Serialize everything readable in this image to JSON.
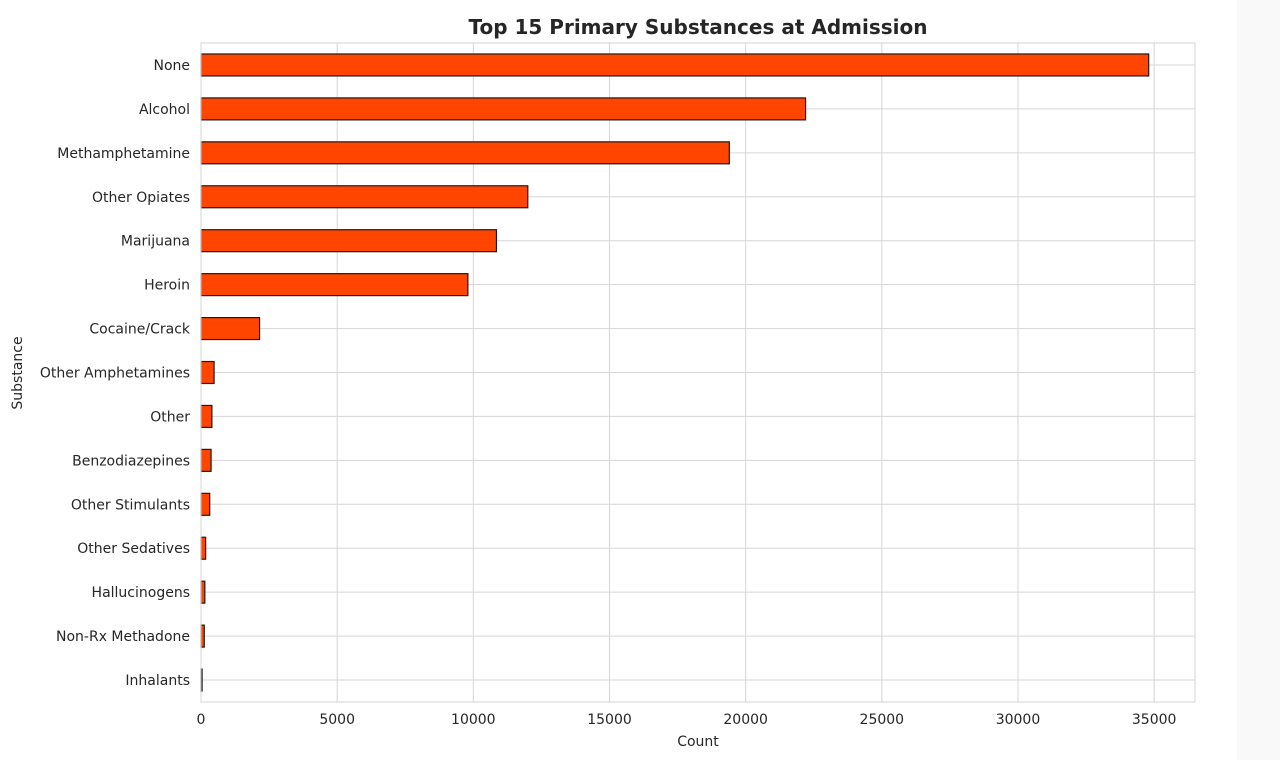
{
  "chart_data": {
    "type": "bar",
    "orientation": "horizontal",
    "title": "Top 15 Primary Substances at Admission",
    "xlabel": "Count",
    "ylabel": "Substance",
    "xlim": [
      0,
      36500
    ],
    "xticks": [
      0,
      5000,
      10000,
      15000,
      20000,
      25000,
      30000,
      35000
    ],
    "grid": true,
    "bar_color": "#ff4500",
    "edge_color": "#1a1a1a",
    "categories": [
      "None",
      "Alcohol",
      "Methamphetamine",
      "Other Opiates",
      "Marijuana",
      "Heroin",
      "Cocaine/Crack",
      "Other Amphetamines",
      "Other",
      "Benzodiazepines",
      "Other Stimulants",
      "Other Sedatives",
      "Hallucinogens",
      "Non-Rx Methadone",
      "Inhalants"
    ],
    "values": [
      34800,
      22200,
      19400,
      12000,
      10850,
      9800,
      2150,
      480,
      400,
      370,
      320,
      170,
      140,
      120,
      40
    ]
  }
}
